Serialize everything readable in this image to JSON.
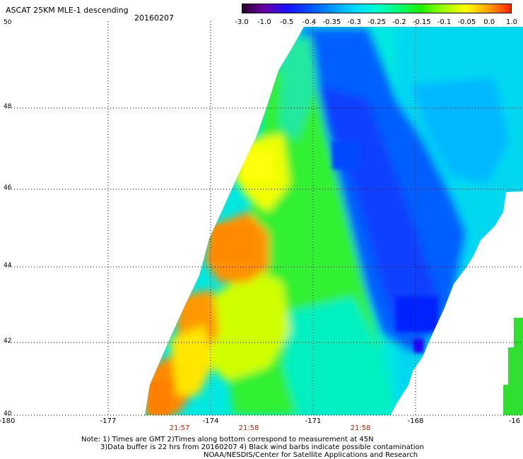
{
  "header": {
    "title": "ASCAT 25KM MLE-1 descending",
    "date": "20160207"
  },
  "colorbar": {
    "labels": [
      "-3.0",
      "-1.0",
      "-0.5",
      "-0.4",
      "-0.35",
      "-0.3",
      "-0.25",
      "-0.2",
      "-0.15",
      "-0.1",
      "-0.05",
      "0.0",
      "1.0"
    ],
    "colors": [
      "#2a0030",
      "#6a00a8",
      "#1a10ff",
      "#0050ff",
      "#0098ff",
      "#00d8ff",
      "#00ffd0",
      "#00ff70",
      "#20f000",
      "#a0ff00",
      "#ffff00",
      "#ffa000",
      "#ff2000"
    ]
  },
  "map": {
    "lat_labels": [
      "50",
      "48",
      "46",
      "44",
      "42",
      "40"
    ],
    "lon_labels": [
      "-180",
      "-177",
      "-174",
      "-171",
      "-168",
      "-16"
    ],
    "time_labels": [
      "21:57",
      "21:58",
      "21:58"
    ],
    "colors": {
      "orange": "#ff8c00",
      "yellow": "#f5ff00",
      "yellow_green": "#b8ff00",
      "green": "#30f030",
      "aqua_green": "#00ffa8",
      "cyan": "#00f0e8",
      "light_blue": "#00c0ff",
      "blue": "#0070ff",
      "deep_blue": "#1030ff"
    }
  },
  "footer": {
    "note_line1": "Note: 1) Times are GMT 2)Times along bottom correspond to measurement at 45N",
    "note_line2": "3)Data buffer is 22 hrs from 20160207 4) Black wind barbs indicate possible contamination",
    "credit": "NOAA/NESDIS/Center for Satellite Applications and Research"
  }
}
